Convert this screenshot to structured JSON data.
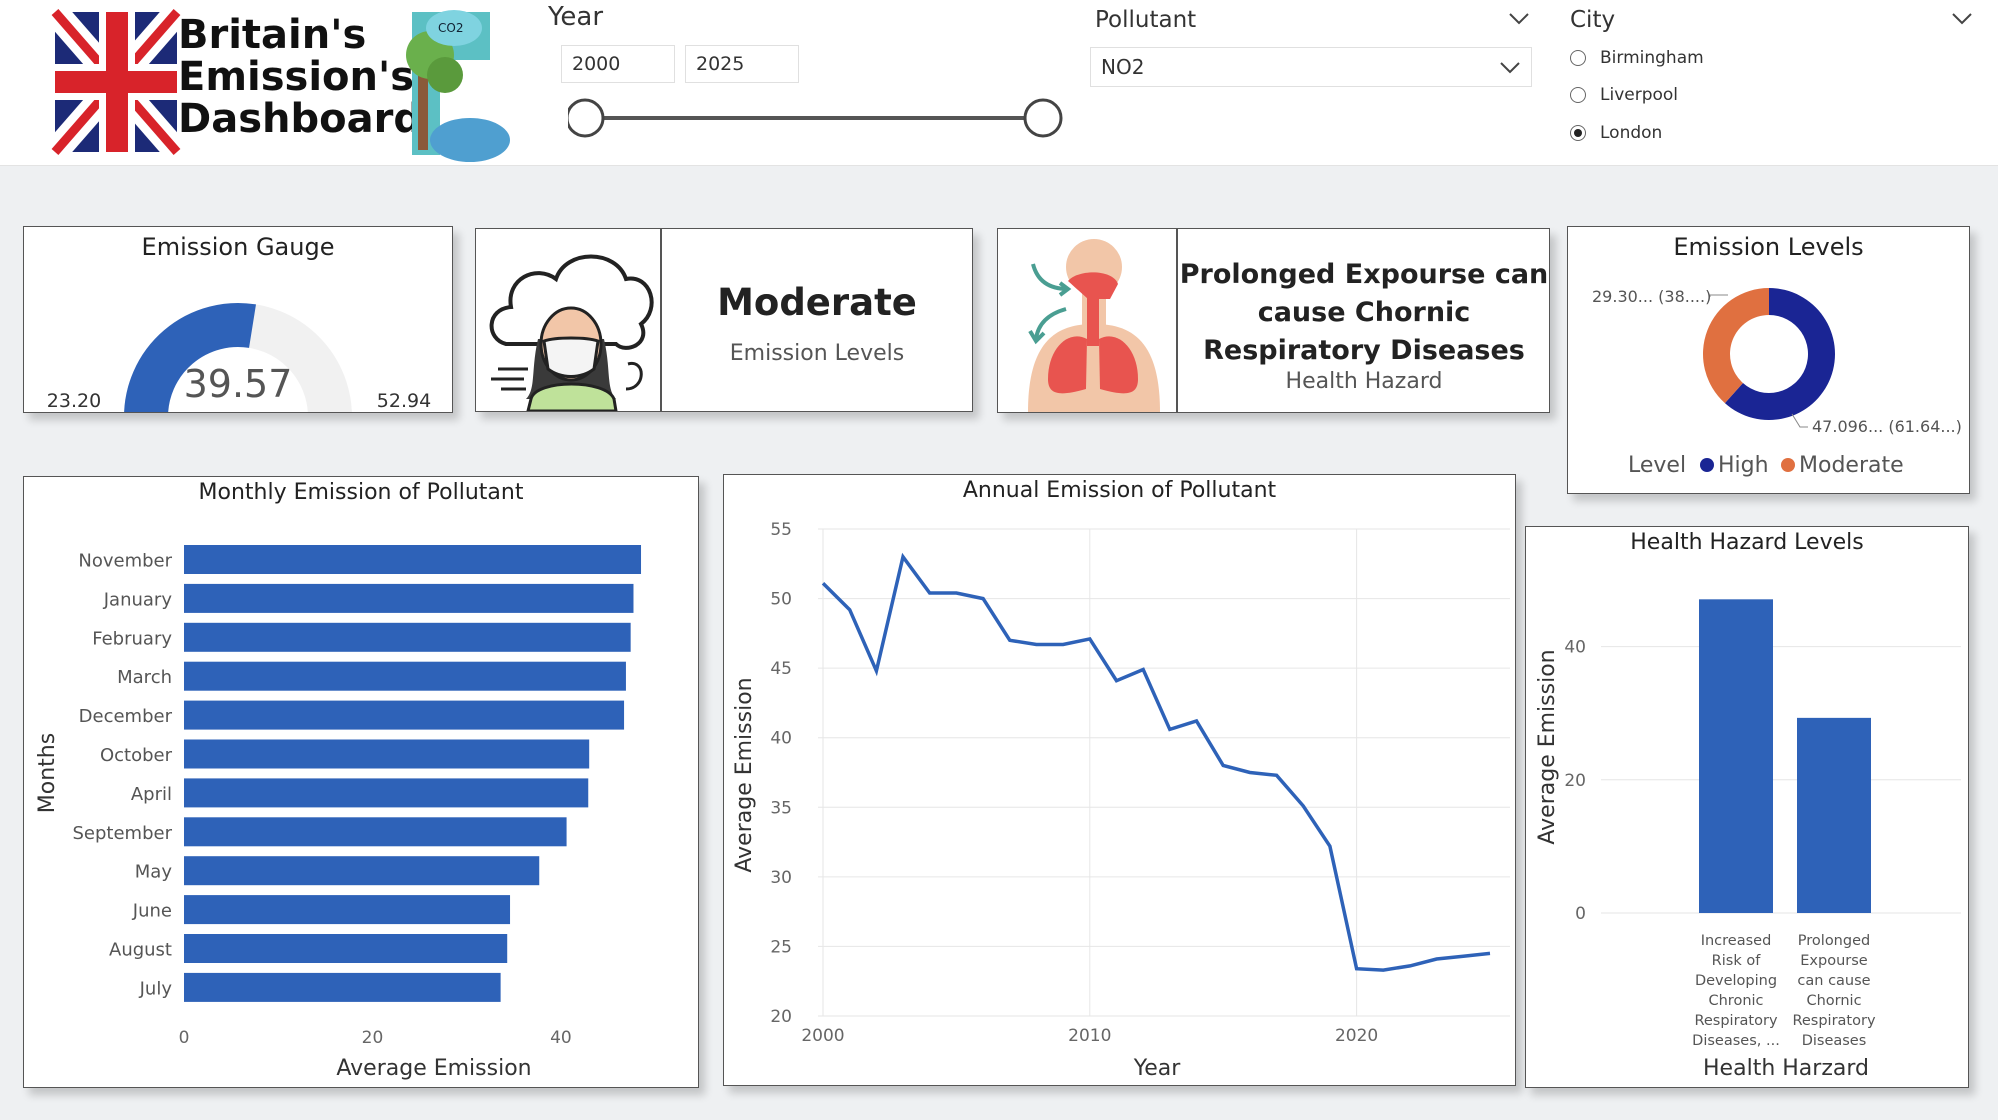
{
  "logo": {
    "line1": "Britain's",
    "line2": "Emission's",
    "line3": "Dashboard",
    "badge": "CO2",
    "flag_icon": "union-jack-flag-icon",
    "tree_icon": "tree-cloud-icon"
  },
  "filters": {
    "year": {
      "label": "Year",
      "from": "2000",
      "to": "2025",
      "range": [
        2000,
        2025
      ]
    },
    "pollutant": {
      "label": "Pollutant",
      "selected": "NO2"
    },
    "city": {
      "label": "City",
      "options": [
        "Birmingham",
        "Liverpool",
        "London"
      ],
      "selected": "London"
    }
  },
  "gauge": {
    "title": "Emission Gauge",
    "value": 39.57,
    "value_text": "39.57",
    "min": 23.2,
    "min_text": "23.20",
    "max": 52.94,
    "max_text": "52.94",
    "fill_color": "#2e62b8",
    "track_color": "#f1f1f1"
  },
  "level_card": {
    "value": "Moderate",
    "caption": "Emission Levels",
    "icon": "woman-mask-pollution-icon"
  },
  "hazard_card": {
    "line1": "Prolonged Expourse can",
    "line2": "cause Chornic",
    "line3": "Respiratory Diseases",
    "caption": "Health Hazard",
    "icon": "lungs-icon"
  },
  "colors": {
    "primary": "#2e62b8",
    "high": "#1a2594",
    "moderate": "#e07040"
  },
  "chart_data": [
    {
      "type": "pie",
      "title": "Emission Levels",
      "legend_title": "Level",
      "labels": [
        "High",
        "Moderate"
      ],
      "values": [
        61.64,
        38.36
      ],
      "data_labels": [
        "47.096... (61.64...)",
        "29.30... (38....)"
      ],
      "colors": [
        "#1a2594",
        "#e07040"
      ],
      "legend_position": "bottom"
    },
    {
      "type": "bar",
      "title": "Monthly Emission of Pollutant",
      "orientation": "horizontal",
      "ylabel": "Months",
      "xlabel": "Average Emission",
      "categories": [
        "November",
        "January",
        "February",
        "March",
        "December",
        "October",
        "April",
        "September",
        "May",
        "June",
        "August",
        "July"
      ],
      "values": [
        48.5,
        47.7,
        47.4,
        46.9,
        46.7,
        43.0,
        42.9,
        40.6,
        37.7,
        34.6,
        34.3,
        33.6
      ],
      "xlim": [
        0,
        52
      ],
      "xticks": [
        0,
        20,
        40
      ],
      "color": "#2e62b8"
    },
    {
      "type": "line",
      "title": "Annual Emission of Pollutant",
      "xlabel": "Year",
      "ylabel": "Average Emission",
      "x": [
        2000,
        2001,
        2002,
        2003,
        2004,
        2005,
        2006,
        2007,
        2008,
        2009,
        2010,
        2011,
        2012,
        2013,
        2014,
        2015,
        2016,
        2017,
        2018,
        2019,
        2020,
        2021,
        2022,
        2023,
        2024,
        2025
      ],
      "y": [
        51.1,
        49.2,
        44.8,
        53.0,
        50.4,
        50.4,
        50.0,
        47.0,
        46.7,
        46.7,
        47.1,
        44.1,
        44.9,
        40.6,
        41.2,
        38.0,
        37.5,
        37.3,
        35.1,
        32.2,
        23.4,
        23.3,
        23.6,
        24.1,
        24.3,
        24.5
      ],
      "xlim": [
        2000,
        2025
      ],
      "ylim": [
        20,
        55
      ],
      "xticks": [
        2000,
        2010,
        2020
      ],
      "yticks": [
        20,
        25,
        30,
        35,
        40,
        45,
        50,
        55
      ],
      "color": "#2e62b8",
      "grid": true
    },
    {
      "type": "bar",
      "title": "Health Hazard Levels",
      "xlabel": "Health Harzard",
      "ylabel": "Average Emission",
      "categories": [
        [
          "Increased",
          "Risk of",
          "Developing",
          "Chronic",
          "Respiratory",
          "Diseases, ..."
        ],
        [
          "Prolonged",
          "Expourse",
          "can cause",
          "Chornic",
          "Respiratory",
          "Diseases"
        ]
      ],
      "values": [
        47.1,
        29.3
      ],
      "ylim": [
        0,
        50
      ],
      "yticks": [
        0,
        20,
        40
      ],
      "color": "#2e62b8",
      "grid": true
    }
  ]
}
